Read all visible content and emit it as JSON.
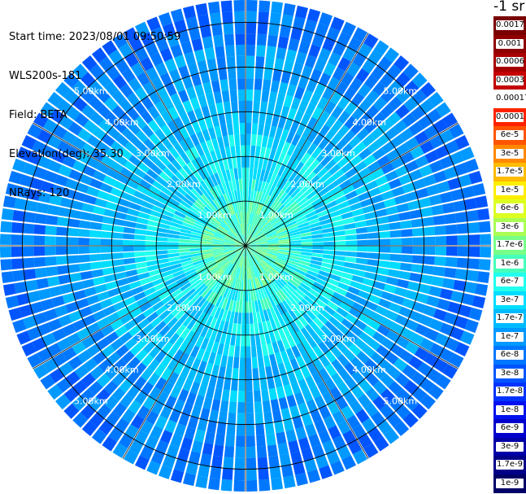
{
  "header": {
    "start_time": "Start time: 2023/08/01 09:50:59",
    "site": "WLS200s-181",
    "field": "Field: BETA",
    "elevation": "Elevation(deg): 35.30",
    "nrays": "NRays: 120"
  },
  "colorbar": {
    "title": "-1 sr",
    "labels": [
      "0.0017",
      "0.001",
      "0.0006",
      "0.0003",
      "0.00017",
      "0.0001",
      "6e-5",
      "3e-5",
      "1.7e-5",
      "1e-5",
      "6e-6",
      "3e-6",
      "1.7e-6",
      "1e-6",
      "6e-7",
      "3e-7",
      "1.7e-7",
      "1e-7",
      "6e-8",
      "3e-8",
      "1.7e-8",
      "1e-8",
      "6e-9",
      "3e-9",
      "1.7e-9",
      "1e-9"
    ],
    "colors": [
      "#7a0000",
      "#8e0000",
      "#a80000",
      "#c40000",
      "#ffffff",
      "#ff2200",
      "#ff5500",
      "#ff8800",
      "#ffbb00",
      "#ffee00",
      "#ddff22",
      "#aaff55",
      "#77ff88",
      "#44ffbb",
      "#22ffee",
      "#00ddff",
      "#00bbff",
      "#0099ff",
      "#0077ff",
      "#0055ff",
      "#0033ff",
      "#0011ee",
      "#0000cc",
      "#0000a8",
      "#000088",
      "#000066"
    ]
  },
  "chart_data": {
    "type": "ppi-polar",
    "field": "BETA",
    "units": "-1 sr",
    "nrays": 120,
    "elevation_deg": 35.3,
    "range_ring_km": [
      1,
      2,
      3,
      4,
      5
    ],
    "range_ring_labels": [
      "1.00km",
      "2.00km",
      "3.00km",
      "4.00km",
      "5.00km"
    ],
    "radial_lines_deg": [
      0,
      30,
      60,
      90,
      120,
      150,
      180,
      210,
      240,
      270,
      300,
      330
    ],
    "max_range_km": 5.5,
    "beta_by_range_band": [
      {
        "range_km": [
          0.0,
          1.0
        ],
        "level_index": 13
      },
      {
        "range_km": [
          1.0,
          1.5
        ],
        "level_index": 14
      },
      {
        "range_km": [
          1.5,
          2.5
        ],
        "level_index": 15
      },
      {
        "range_km": [
          2.5,
          3.5
        ],
        "level_index": 16
      },
      {
        "range_km": [
          3.5,
          4.5
        ],
        "level_index": 17
      },
      {
        "range_km": [
          4.5,
          5.5
        ],
        "level_index": 18
      }
    ]
  }
}
